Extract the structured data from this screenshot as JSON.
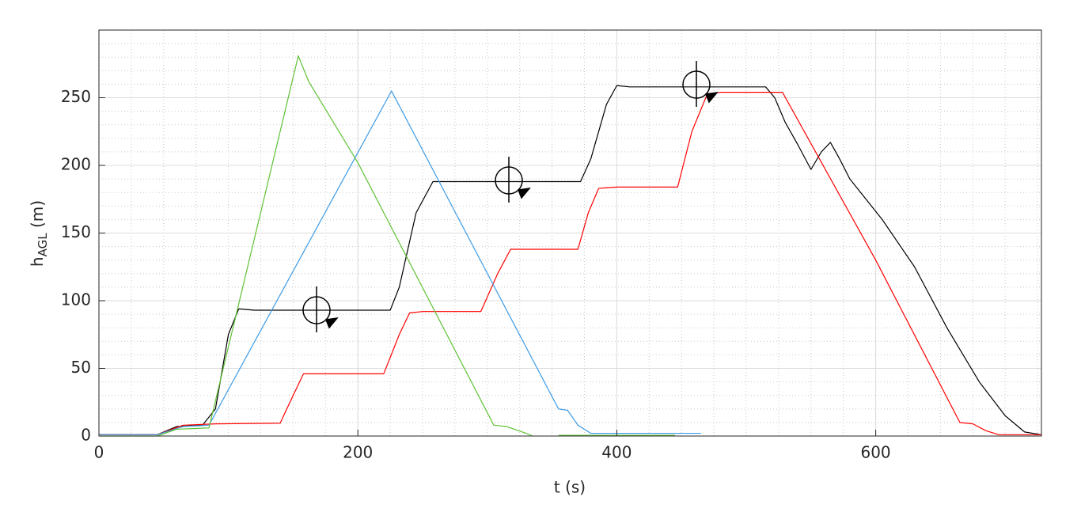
{
  "chart_data": {
    "type": "line",
    "xlabel": "t (s)",
    "ylabel": {
      "main": "h",
      "sub": "AGL",
      "rest": " (m)"
    },
    "xlim": [
      0,
      728
    ],
    "ylim": [
      0,
      300
    ],
    "xticks": [
      0,
      200,
      400,
      600
    ],
    "yticks": [
      0,
      50,
      100,
      150,
      200,
      250
    ],
    "grid": true,
    "minor_grid": {
      "x": 25,
      "y": 10
    },
    "series": [
      {
        "color": "#000000",
        "x": [
          0,
          45,
          60,
          80,
          90,
          100,
          108,
          120,
          225,
          232,
          245,
          258,
          270,
          372,
          380,
          392,
          400,
          410,
          515,
          522,
          530,
          540,
          550,
          558,
          565,
          572,
          580,
          605,
          630,
          655,
          680,
          700,
          715,
          728
        ],
        "values": [
          1,
          1,
          7,
          8,
          20,
          75,
          94,
          93,
          93,
          110,
          165,
          188,
          188,
          188,
          205,
          245,
          259,
          258,
          258,
          250,
          232,
          215,
          197,
          210,
          217,
          205,
          190,
          160,
          125,
          80,
          40,
          15,
          3,
          1
        ]
      },
      {
        "color": "#ff0000",
        "x": [
          0,
          45,
          65,
          90,
          140,
          150,
          158,
          170,
          220,
          232,
          240,
          250,
          295,
          308,
          318,
          330,
          370,
          378,
          386,
          400,
          447,
          458,
          470,
          480,
          528,
          600,
          665,
          675,
          685,
          695,
          728
        ],
        "values": [
          1,
          1,
          8,
          9,
          9.5,
          30,
          46,
          46,
          46,
          75,
          91,
          92,
          92,
          120,
          138,
          138,
          138,
          165,
          183,
          184,
          184,
          225,
          253,
          254,
          254,
          130,
          10,
          9,
          4,
          1,
          1
        ]
      },
      {
        "color": "#3c9be6",
        "x": [
          0,
          45,
          65,
          85,
          226,
          355,
          362,
          370,
          380,
          465
        ],
        "values": [
          1,
          1,
          7,
          8,
          255,
          20,
          19,
          8,
          2,
          2
        ]
      },
      {
        "color": "#5fc234",
        "x": [
          0,
          45,
          60,
          85,
          154,
          162,
          200,
          305,
          315,
          330,
          335,
          345,
          355,
          445
        ],
        "values": [
          0,
          0,
          5,
          6,
          281,
          262,
          202,
          8,
          7,
          2,
          0,
          null,
          0.5,
          0.5
        ]
      }
    ]
  }
}
